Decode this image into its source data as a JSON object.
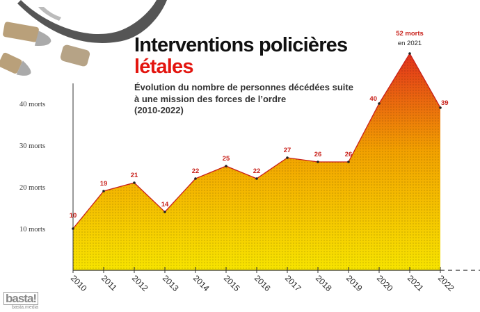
{
  "header": {
    "title_line1": "Interventions policières",
    "title_line2": "létales",
    "subtitle_line1": "Évolution du nombre de personnes décédées suite",
    "subtitle_line2": "à une mission des forces de l’ordre",
    "subtitle_line3": "(2010-2022)"
  },
  "logo": {
    "name": "basta!",
    "tagline": "basta.media"
  },
  "chart_data": {
    "type": "area",
    "categories": [
      "2010",
      "2011",
      "2012",
      "2013",
      "2014",
      "2015",
      "2016",
      "2017",
      "2018",
      "2019",
      "2020",
      "2021",
      "2022"
    ],
    "values": [
      10,
      19,
      21,
      14,
      22,
      25,
      22,
      27,
      26,
      26,
      40,
      52,
      39
    ],
    "data_labels": [
      "10",
      "19",
      "21",
      "14",
      "22",
      "25",
      "22",
      "27",
      "26",
      "26",
      "40",
      "52 morts",
      "39"
    ],
    "annotation": "en 2021",
    "y_ticks": [
      {
        "value": 10,
        "label": "10 morts"
      },
      {
        "value": 20,
        "label": "20 morts"
      },
      {
        "value": 30,
        "label": "30 morts"
      },
      {
        "value": 40,
        "label": "40 morts"
      }
    ],
    "ylim": [
      0,
      52
    ],
    "grid": false,
    "colors": {
      "fill_bottom": "#f7e400",
      "fill_top": "#e2321c",
      "line": "#c8201a",
      "label": "#c8201a"
    }
  }
}
